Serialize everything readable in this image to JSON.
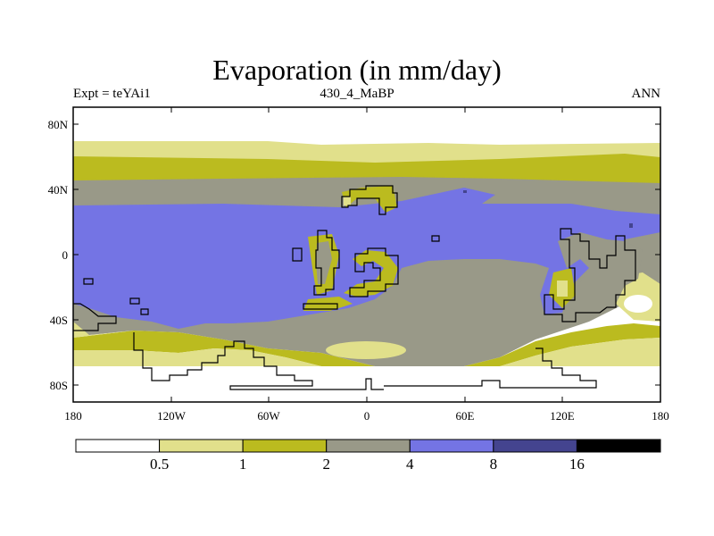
{
  "title": "Evaporation (in mm/day)",
  "subtitle_left": "Expt = teYAi1",
  "subtitle_center": "430_4_MaBP",
  "subtitle_right": "ANN",
  "lat_labels": [
    "80N",
    "40N",
    "0",
    "40S",
    "80S"
  ],
  "lon_labels": [
    "180",
    "120W",
    "60W",
    "0",
    "60E",
    "120E",
    "180"
  ],
  "colorbar": {
    "colors": [
      "#ffffff",
      "#e1e08b",
      "#bbbb1f",
      "#999988",
      "#7474e4",
      "#44448f",
      "#000000"
    ],
    "labels": [
      "0.5",
      "1",
      "2",
      "4",
      "8",
      "16"
    ]
  }
}
